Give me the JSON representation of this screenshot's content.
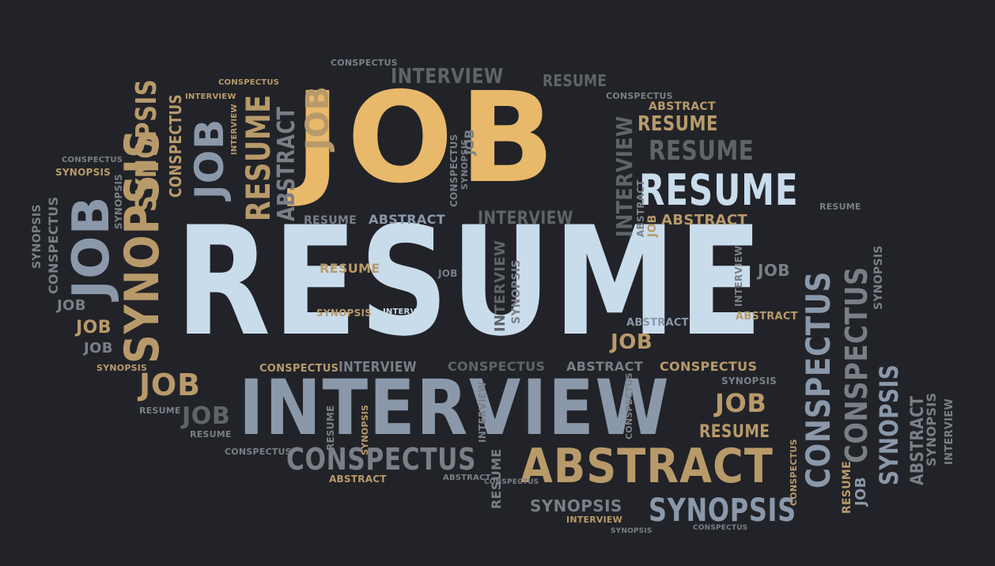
{
  "colors": {
    "background": "#222328",
    "orange": "#e8b96a",
    "tan": "#b89a6a",
    "lightblue": "#c9dcec",
    "slate": "#8a98aa",
    "gray": "#7a7f86",
    "darkgray": "#5f6469"
  },
  "words": {
    "job_main": "JOB",
    "resume_main": "RESUME",
    "interview_main": "INTERVIEW",
    "abstract_main": "ABSTRACT",
    "conspectus_main": "CONSPECTUS",
    "synopsis_main": "SYNOPSIS",
    "w_interview_top": "INTERVIEW",
    "w_resume_top": "RESUME",
    "w_conspectus_top": "CONSPECTUS",
    "w_resume_r1": "RESUME",
    "w_resume_r2": "RESUME",
    "w_resume_r3": "RESUME",
    "w_abstract_r1": "ABSTRACT",
    "w_abstract_r2": "ABSTRACT",
    "w_interview_mid": "INTERVIEW",
    "w_abstract_mid": "ABSTRACT",
    "w_resume_mid": "RESUME",
    "w_resume_r4": "RESUME",
    "w_conspectus_r1": "CONSPECTUS",
    "w_job_r1": "JOB",
    "w_abstract_r3": "ABSTRACT",
    "w_abstract_r4": "ABSTRACT",
    "w_conspectus_low": "CONSPECTUS",
    "w_interview_low": "INTERVIEW",
    "w_conspectus_low2": "CONSPECTUS",
    "w_abstract_low": "ABSTRACT",
    "w_conspectus_low3": "CONSPECTUS",
    "w_job_low": "JOB",
    "w_job_low2": "JOB",
    "w_resume_low": "RESUME",
    "w_resume_low2": "RESUME",
    "w_conspectus_bottom": "CONSPECTUS",
    "w_abstract_bottom": "ABSTRACT",
    "w_abstract_bottom2": "ABSTRACT",
    "w_synopsis_bottom": "SYNOPSIS",
    "w_synopsis_bottom2": "SYNOPSIS",
    "w_interview_bottom": "INTERVIEW",
    "w_conspectus_bottom2": "CONSPECTUS",
    "w_job_left1": "JOB",
    "w_job_left2": "JOB",
    "w_job_left3": "JOB",
    "w_synopsis_left": "SYNOPSIS",
    "w_job_left4": "JOB",
    "w_job_left5": "JOB",
    "w_resume_left": "RESUME",
    "w_resume_left2": "RESUME",
    "w_conspectus_left": "CONSPECTUS",
    "w_synopsis_left2": "SYNOPSIS",
    "w_conspectus_top2": "CONSPECTUS",
    "w_interview_top2": "INTERVIEW",
    "w_conspectus_left2": "CONSPECTUS",
    "w_synopsis_left3": "SYNOPSIS",
    "v_job_left_big": "JOB",
    "v_synopsis_left_big": "SYNOPSIS",
    "v_synopsis_left_col": "SYNOPSIS",
    "v_conspectus_left_col": "CONSPECTUS",
    "v_synopsis_far_left": "SYNOPSIS",
    "v_synopsis_orange": "SYNOPSIS",
    "v_conspectus_orange": "CONSPECTUS",
    "v_job_gray": "JOB",
    "v_synopsis_small": "SYNOPSIS",
    "v_interview_small": "INTERVIEW",
    "v_resume_orange": "RESUME",
    "v_abstract_gray": "ABSTRACT",
    "v_job_orange": "JOB",
    "v_conspectus_small": "CONSPECTUS",
    "v_synopsis_small2": "SYNOPSIS",
    "v_job_small": "JOB",
    "v_resume_small": "RESUME",
    "v_interview_right": "INTERVIEW",
    "v_abstract_right": "ABSTRACT",
    "v_job_right": "JOB",
    "v_conspectus_right_big": "CONSPECTUS",
    "v_conspectus_right_big2": "CONSPECTUS",
    "v_synopsis_right_small": "SYNOPSIS",
    "v_conspectus_right3": "CONSPECTUS",
    "v_synopsis_right3": "SYNOPSIS",
    "v_abstract_right3": "ABSTRACT",
    "v_interview_right3": "INTERVIEW",
    "v_synopsis_right4": "SYNOPSIS",
    "v_resume_right3": "RESUME",
    "v_job_right3": "JOB",
    "v_interview_mid_col": "INTERVIEW",
    "v_interview_mid_col2": "INTERVIEW",
    "v_synopsis_mid_col": "SYNOPSIS",
    "v_resume_low_col": "RESUME",
    "v_interview_low_col": "INTERVIEW",
    "v_synopsis_low_col": "SYNOPSIS",
    "v_conspectus_low_col": "CONSPECTUS",
    "v_resume_low_col2": "RESUME",
    "v_interview_right_small": "INTERVIEW",
    "v_conspectus_top_col": "CONSPECTUS"
  }
}
